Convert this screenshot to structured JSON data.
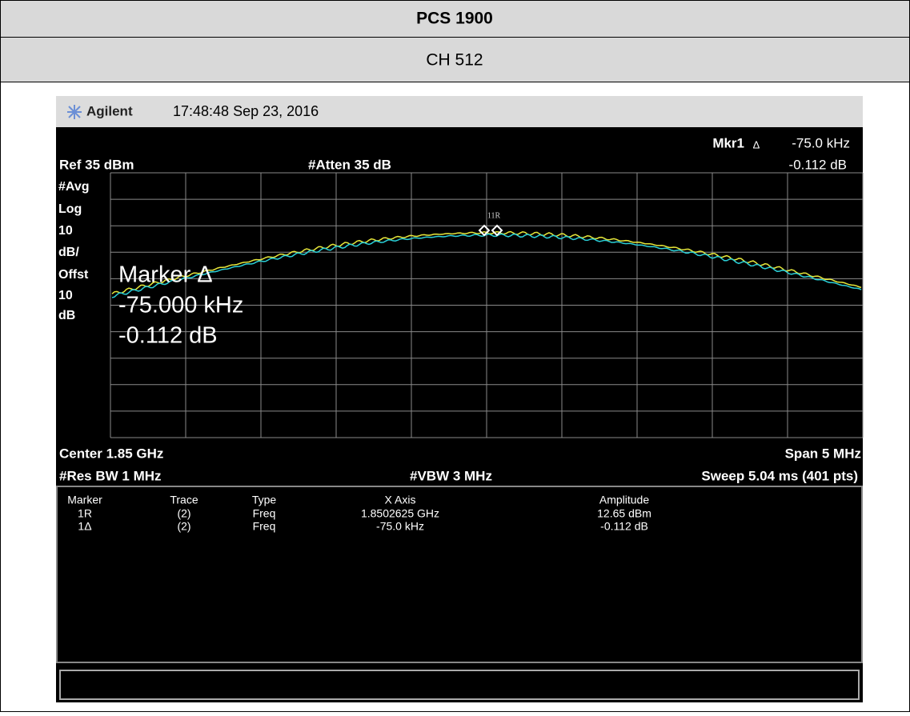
{
  "header": {
    "title": "PCS 1900",
    "channel": "CH 512"
  },
  "screen": {
    "brand": "Agilent",
    "timestamp": "17:48:48 Sep 23, 2016",
    "marker_readout": {
      "label": "Mkr1",
      "symbol": "Δ",
      "x": "-75.0 kHz",
      "y": "-0.112 dB"
    },
    "ref": "Ref 35 dBm",
    "atten": "#Atten 35 dB",
    "left_labels": [
      "#Avg",
      "Log",
      "10",
      "dB/",
      "Offst",
      "10",
      "dB"
    ],
    "overlay": [
      "Marker Δ",
      "-75.000 kHz",
      "-0.112 dB"
    ],
    "marker_tag": "11R",
    "center": "Center 1.85 GHz",
    "span": "Span 5 MHz",
    "res_bw": "#Res BW 1 MHz",
    "vbw": "#VBW 3 MHz",
    "sweep": "Sweep 5.04 ms (401 pts)"
  },
  "table": {
    "columns": [
      "Marker",
      "Trace",
      "Type",
      "X Axis",
      "Amplitude"
    ],
    "rows": [
      [
        "1R",
        "(2)",
        "Freq",
        "1.8502625 GHz",
        "12.65 dBm"
      ],
      [
        "1Δ",
        "(2)",
        "Freq",
        "-75.0 kHz",
        "-0.112 dB"
      ]
    ]
  }
}
